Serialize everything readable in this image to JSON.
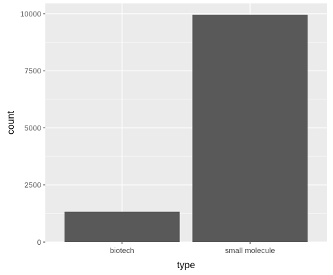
{
  "chart_data": {
    "type": "bar",
    "title": "",
    "xlabel": "type",
    "ylabel": "count",
    "categories": [
      "biotech",
      "small molecule"
    ],
    "values": [
      1330,
      9950
    ],
    "ylim": [
      0,
      10450
    ],
    "yticks": [
      0,
      2500,
      5000,
      7500,
      10000
    ],
    "ytick_labels": [
      "0",
      "2500",
      "5000",
      "7500",
      "10000"
    ],
    "grid": true,
    "legend": "none",
    "colors": {
      "panel": "#ebebeb",
      "grid_major": "#ffffff",
      "bar": "#595959",
      "tick_text": "#4d4d4d",
      "title_text": "#000000"
    }
  }
}
